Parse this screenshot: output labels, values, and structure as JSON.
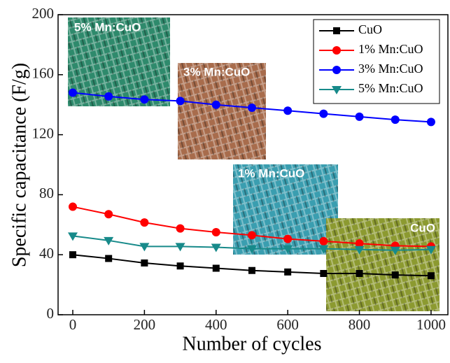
{
  "chart_data": {
    "type": "line",
    "xlabel": "Number of cycles",
    "ylabel": "Specific capacitance (F/g)",
    "x": [
      0,
      100,
      200,
      300,
      400,
      500,
      600,
      700,
      800,
      900,
      1000
    ],
    "series": [
      {
        "name": "CuO",
        "color": "#000000",
        "marker": "square",
        "values": [
          40,
          37.5,
          34.5,
          32.5,
          31,
          29.5,
          28.5,
          27.5,
          27.5,
          26.5,
          26
        ]
      },
      {
        "name": "1% Mn:CuO",
        "color": "#ff0000",
        "marker": "circle",
        "values": [
          72,
          67,
          61.5,
          57.5,
          55,
          53,
          50.5,
          49,
          47.5,
          46,
          45.5
        ]
      },
      {
        "name": "3% Mn:CuO",
        "color": "#0000ff",
        "marker": "circle",
        "values": [
          148,
          145.5,
          143.5,
          142.5,
          140,
          138,
          136,
          134,
          132,
          130,
          128.5
        ]
      },
      {
        "name": "5% Mn:CuO",
        "color": "#178a8a",
        "marker": "triangle-down",
        "values": [
          52.5,
          49.5,
          45.5,
          45.5,
          45,
          44,
          44,
          44,
          43.5,
          43,
          43.5
        ]
      }
    ],
    "annotations": [
      "5% Mn:CuO",
      "3% Mn:CuO",
      "1% Mn:CuO",
      "CuO"
    ],
    "xlim": [
      -41,
      1047
    ],
    "ylim": [
      0,
      200
    ],
    "xticks": [
      0,
      200,
      400,
      600,
      800,
      1000
    ],
    "yticks": [
      0,
      40,
      80,
      120,
      160,
      200
    ],
    "legend": "top-right"
  }
}
